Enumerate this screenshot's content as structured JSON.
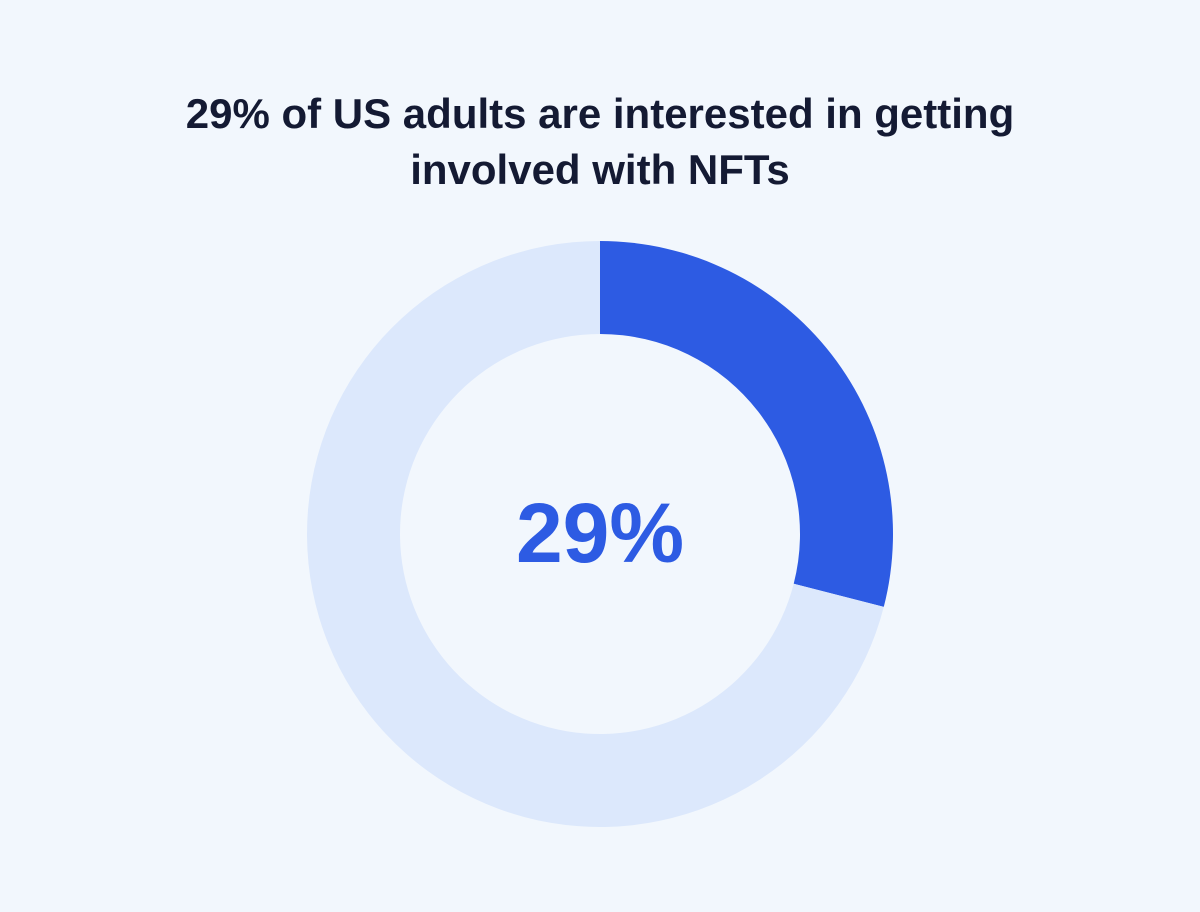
{
  "chart_data": {
    "type": "donut",
    "title": "29% of US adults are interested in getting involved with NFTs",
    "values": [
      29,
      71
    ],
    "value_labels": [
      "29%",
      null
    ],
    "colors": [
      "#2d5be3",
      "#dce8fc"
    ]
  }
}
